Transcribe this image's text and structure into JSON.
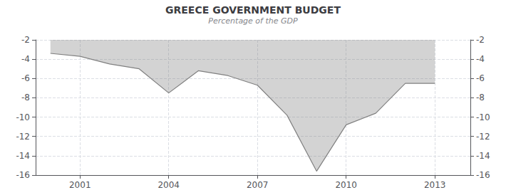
{
  "chart_data": {
    "type": "area",
    "title": "GREECE GOVERNMENT BUDGET",
    "subtitle": "Percentage of the GDP",
    "x": [
      2000,
      2001,
      2002,
      2003,
      2004,
      2005,
      2006,
      2007,
      2008,
      2009,
      2010,
      2011,
      2012,
      2013
    ],
    "values": [
      -3.4,
      -3.7,
      -4.5,
      -5.0,
      -7.5,
      -5.2,
      -5.7,
      -6.7,
      -9.8,
      -15.6,
      -10.8,
      -9.6,
      -6.5,
      -6.5
    ],
    "color": "#808080",
    "xlim": [
      1999.5,
      2014.2
    ],
    "xticks": [
      2001,
      2004,
      2007,
      2010,
      2013
    ],
    "ylim": [
      -16,
      -2
    ],
    "yticks": [
      -2,
      -4,
      -6,
      -8,
      -10,
      -12,
      -14,
      -16
    ],
    "y2lim": [
      -16,
      -2
    ],
    "y2ticks": [
      -2,
      -4,
      -6,
      -8,
      -10,
      -12,
      -14,
      -16
    ],
    "grid": true
  }
}
